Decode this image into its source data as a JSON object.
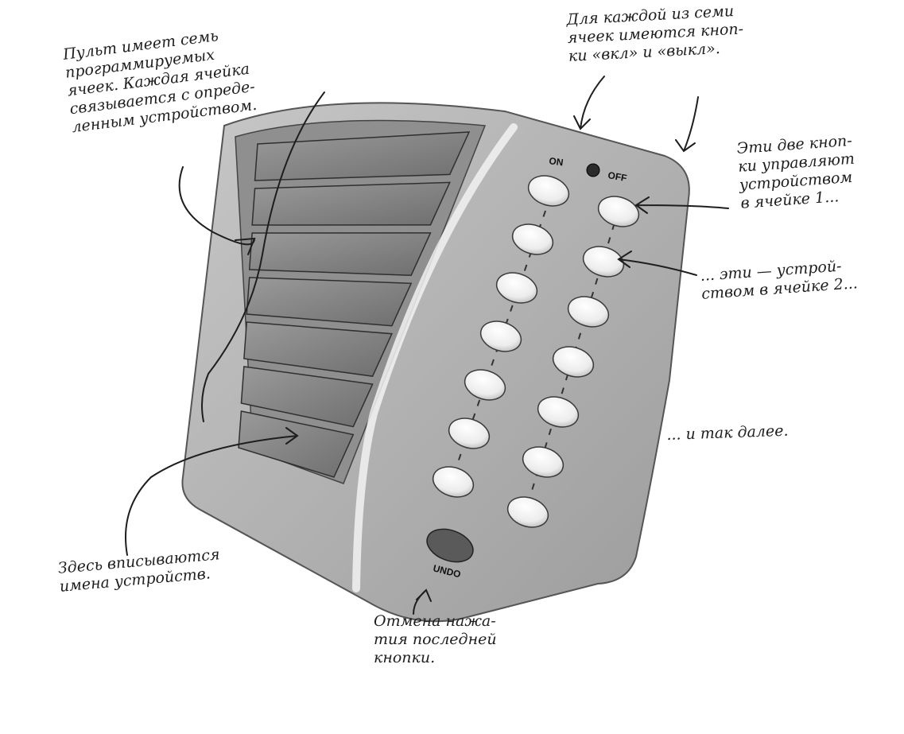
{
  "remote": {
    "labels": {
      "on": "ON",
      "off": "OFF",
      "undo": "UNDO"
    },
    "slot_count": 7,
    "colors": {
      "body": "#b3b3b3",
      "slot": "#8a8a8a",
      "button": "#f4f4f4",
      "ink": "#1e1e1e"
    }
  },
  "annotations": {
    "cells": "Пульт имеет семь\nпрограммируемых\nячеек. Каждая ячейка\nсвязывается с опреде-\nленным устройством.",
    "on_off": "Для каждой из семи\nячеек имеются кноп-\nки «вкл» и «выкл».",
    "slot1": "Эти две кноп-\nки управляют\nустройством\nв ячейке 1...",
    "slot2": "... эти — устрой-\nством в ячейке 2...",
    "more": "... и так далее.",
    "names": "Здесь вписываются\nимена устройств.",
    "undo": "Отмена нажа-\nтия последней\nкнопки."
  }
}
